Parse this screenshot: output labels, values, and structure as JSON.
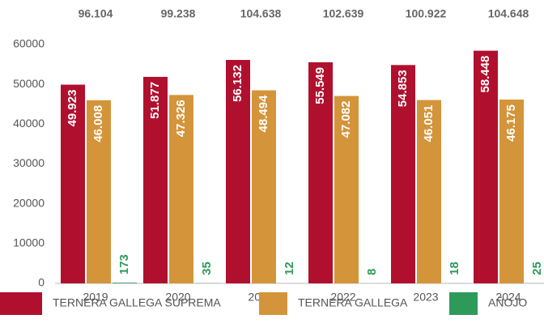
{
  "chart_data": {
    "type": "bar",
    "categories": [
      "2019",
      "2020",
      "2021",
      "2022",
      "2023",
      "2024"
    ],
    "totals": [
      "96.104",
      "99.238",
      "104.638",
      "102.639",
      "100.922",
      "104.648"
    ],
    "series": [
      {
        "name": "TERNERA GALLEGA SUPREMA",
        "color": "#b0102e",
        "label_color": "#ffffff",
        "values": [
          49923,
          51877,
          56132,
          55549,
          54853,
          58448
        ],
        "value_labels": [
          "49.923",
          "51.877",
          "56.132",
          "55.549",
          "54.853",
          "58.448"
        ]
      },
      {
        "name": "TERNERA GALLEGA",
        "color": "#d4943a",
        "label_color": "#ffffff",
        "values": [
          46008,
          47326,
          48494,
          47082,
          46051,
          46175
        ],
        "value_labels": [
          "46.008",
          "47.326",
          "48.494",
          "47.082",
          "46.051",
          "46.175"
        ]
      },
      {
        "name": "AÑOJO",
        "color": "#2e9a5a",
        "label_color": "#2e9a5a",
        "values": [
          173,
          35,
          12,
          8,
          18,
          25
        ]
      }
    ],
    "ylim": [
      0,
      60000
    ],
    "yticks": [
      0,
      10000,
      20000,
      30000,
      40000,
      50000,
      60000
    ],
    "grid": false,
    "legend": "bottom"
  }
}
